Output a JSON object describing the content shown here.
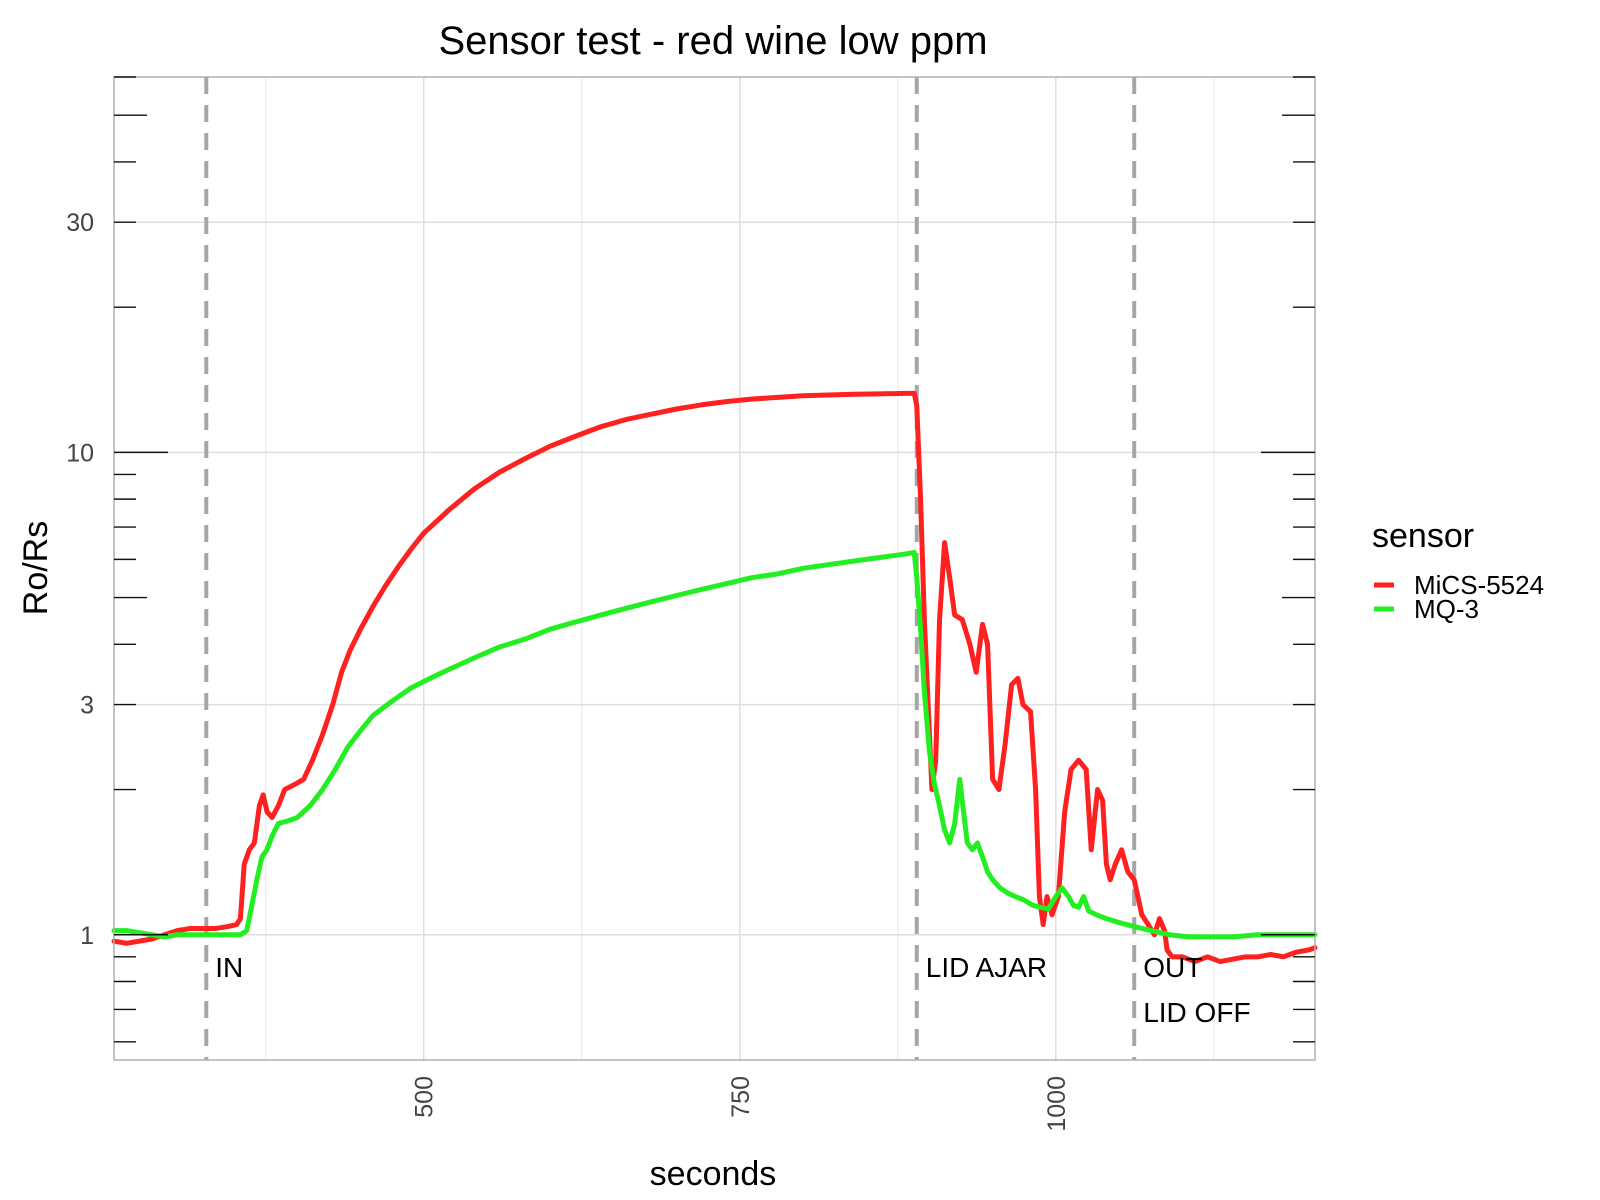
{
  "chart_data": {
    "type": "line",
    "title": "Sensor test - red wine low ppm",
    "xlabel": "seconds",
    "ylabel": "Ro/Rs",
    "xlim": [
      255,
      1205
    ],
    "ylim": [
      0.55,
      60
    ],
    "y_scale": "log",
    "x_ticks": [
      500,
      750,
      1000
    ],
    "x_tick_labels": [
      "500",
      "750",
      "1000"
    ],
    "y_ticks": [
      1,
      3,
      10,
      30
    ],
    "y_tick_labels": [
      "1",
      "3",
      "10",
      "30"
    ],
    "grid": true,
    "legend": {
      "title": "sensor",
      "placement": "right"
    },
    "events": [
      {
        "x": 328,
        "labels": [
          "IN"
        ]
      },
      {
        "x": 890,
        "labels": [
          "LID AJAR"
        ]
      },
      {
        "x": 1062,
        "labels": [
          "OUT",
          "LID OFF"
        ]
      }
    ],
    "series": [
      {
        "name": "MiCS-5524",
        "color": "#ff2020",
        "points": [
          [
            255,
            0.97
          ],
          [
            265,
            0.96
          ],
          [
            275,
            0.97
          ],
          [
            285,
            0.98
          ],
          [
            295,
            1.0
          ],
          [
            305,
            1.02
          ],
          [
            315,
            1.03
          ],
          [
            325,
            1.03
          ],
          [
            335,
            1.03
          ],
          [
            345,
            1.04
          ],
          [
            352,
            1.05
          ],
          [
            355,
            1.08
          ],
          [
            358,
            1.4
          ],
          [
            362,
            1.5
          ],
          [
            366,
            1.55
          ],
          [
            370,
            1.85
          ],
          [
            373,
            1.95
          ],
          [
            376,
            1.8
          ],
          [
            380,
            1.75
          ],
          [
            385,
            1.85
          ],
          [
            390,
            2.0
          ],
          [
            398,
            2.05
          ],
          [
            405,
            2.1
          ],
          [
            412,
            2.3
          ],
          [
            420,
            2.6
          ],
          [
            428,
            3.0
          ],
          [
            435,
            3.5
          ],
          [
            442,
            3.9
          ],
          [
            450,
            4.3
          ],
          [
            460,
            4.8
          ],
          [
            470,
            5.3
          ],
          [
            480,
            5.8
          ],
          [
            490,
            6.3
          ],
          [
            500,
            6.8
          ],
          [
            520,
            7.6
          ],
          [
            540,
            8.4
          ],
          [
            560,
            9.1
          ],
          [
            580,
            9.7
          ],
          [
            600,
            10.3
          ],
          [
            620,
            10.8
          ],
          [
            640,
            11.3
          ],
          [
            660,
            11.7
          ],
          [
            680,
            12.0
          ],
          [
            700,
            12.3
          ],
          [
            720,
            12.55
          ],
          [
            740,
            12.75
          ],
          [
            760,
            12.9
          ],
          [
            780,
            13.0
          ],
          [
            800,
            13.1
          ],
          [
            820,
            13.15
          ],
          [
            840,
            13.2
          ],
          [
            860,
            13.22
          ],
          [
            880,
            13.25
          ],
          [
            888,
            13.25
          ],
          [
            890,
            12.5
          ],
          [
            893,
            8.0
          ],
          [
            896,
            4.5
          ],
          [
            899,
            3.0
          ],
          [
            902,
            2.0
          ],
          [
            905,
            2.3
          ],
          [
            908,
            4.5
          ],
          [
            912,
            6.5
          ],
          [
            916,
            5.5
          ],
          [
            920,
            4.6
          ],
          [
            926,
            4.5
          ],
          [
            932,
            4.0
          ],
          [
            937,
            3.5
          ],
          [
            942,
            4.4
          ],
          [
            946,
            4.0
          ],
          [
            950,
            2.1
          ],
          [
            955,
            2.0
          ],
          [
            960,
            2.5
          ],
          [
            965,
            3.3
          ],
          [
            970,
            3.4
          ],
          [
            974,
            3.0
          ],
          [
            980,
            2.9
          ],
          [
            984,
            2.0
          ],
          [
            987,
            1.2
          ],
          [
            990,
            1.05
          ],
          [
            993,
            1.2
          ],
          [
            997,
            1.1
          ],
          [
            1002,
            1.2
          ],
          [
            1007,
            1.8
          ],
          [
            1012,
            2.2
          ],
          [
            1018,
            2.3
          ],
          [
            1024,
            2.2
          ],
          [
            1028,
            1.5
          ],
          [
            1033,
            2.0
          ],
          [
            1037,
            1.9
          ],
          [
            1040,
            1.4
          ],
          [
            1043,
            1.3
          ],
          [
            1047,
            1.4
          ],
          [
            1052,
            1.5
          ],
          [
            1057,
            1.35
          ],
          [
            1062,
            1.3
          ],
          [
            1068,
            1.1
          ],
          [
            1073,
            1.05
          ],
          [
            1078,
            1.0
          ],
          [
            1082,
            1.08
          ],
          [
            1086,
            1.02
          ],
          [
            1088,
            0.93
          ],
          [
            1092,
            0.9
          ],
          [
            1100,
            0.9
          ],
          [
            1110,
            0.88
          ],
          [
            1120,
            0.9
          ],
          [
            1130,
            0.88
          ],
          [
            1140,
            0.89
          ],
          [
            1150,
            0.9
          ],
          [
            1160,
            0.9
          ],
          [
            1170,
            0.91
          ],
          [
            1180,
            0.9
          ],
          [
            1190,
            0.92
          ],
          [
            1200,
            0.93
          ],
          [
            1205,
            0.94
          ]
        ]
      },
      {
        "name": "MQ-3",
        "color": "#22ee22",
        "points": [
          [
            255,
            1.02
          ],
          [
            265,
            1.02
          ],
          [
            275,
            1.01
          ],
          [
            285,
            1.0
          ],
          [
            295,
            0.99
          ],
          [
            305,
            1.0
          ],
          [
            315,
            1.0
          ],
          [
            325,
            1.0
          ],
          [
            335,
            1.0
          ],
          [
            345,
            1.0
          ],
          [
            355,
            1.0
          ],
          [
            360,
            1.02
          ],
          [
            364,
            1.15
          ],
          [
            368,
            1.3
          ],
          [
            372,
            1.45
          ],
          [
            376,
            1.5
          ],
          [
            380,
            1.6
          ],
          [
            385,
            1.7
          ],
          [
            392,
            1.72
          ],
          [
            400,
            1.75
          ],
          [
            410,
            1.85
          ],
          [
            420,
            2.0
          ],
          [
            430,
            2.2
          ],
          [
            440,
            2.45
          ],
          [
            450,
            2.65
          ],
          [
            460,
            2.85
          ],
          [
            475,
            3.05
          ],
          [
            490,
            3.25
          ],
          [
            505,
            3.4
          ],
          [
            520,
            3.55
          ],
          [
            540,
            3.75
          ],
          [
            560,
            3.95
          ],
          [
            580,
            4.1
          ],
          [
            600,
            4.3
          ],
          [
            620,
            4.45
          ],
          [
            640,
            4.6
          ],
          [
            660,
            4.75
          ],
          [
            680,
            4.9
          ],
          [
            700,
            5.05
          ],
          [
            720,
            5.2
          ],
          [
            740,
            5.35
          ],
          [
            760,
            5.5
          ],
          [
            780,
            5.6
          ],
          [
            800,
            5.75
          ],
          [
            820,
            5.85
          ],
          [
            840,
            5.95
          ],
          [
            860,
            6.05
          ],
          [
            880,
            6.15
          ],
          [
            888,
            6.2
          ],
          [
            890,
            5.5
          ],
          [
            893,
            4.3
          ],
          [
            896,
            3.2
          ],
          [
            900,
            2.4
          ],
          [
            904,
            2.05
          ],
          [
            908,
            1.85
          ],
          [
            912,
            1.65
          ],
          [
            916,
            1.55
          ],
          [
            920,
            1.7
          ],
          [
            924,
            2.1
          ],
          [
            927,
            1.8
          ],
          [
            930,
            1.55
          ],
          [
            934,
            1.5
          ],
          [
            938,
            1.55
          ],
          [
            942,
            1.45
          ],
          [
            946,
            1.35
          ],
          [
            950,
            1.3
          ],
          [
            956,
            1.25
          ],
          [
            962,
            1.22
          ],
          [
            968,
            1.2
          ],
          [
            975,
            1.18
          ],
          [
            982,
            1.15
          ],
          [
            988,
            1.14
          ],
          [
            994,
            1.13
          ],
          [
            1000,
            1.2
          ],
          [
            1005,
            1.25
          ],
          [
            1010,
            1.2
          ],
          [
            1014,
            1.15
          ],
          [
            1018,
            1.14
          ],
          [
            1022,
            1.2
          ],
          [
            1026,
            1.12
          ],
          [
            1032,
            1.1
          ],
          [
            1040,
            1.08
          ],
          [
            1050,
            1.06
          ],
          [
            1062,
            1.04
          ],
          [
            1075,
            1.02
          ],
          [
            1090,
            1.0
          ],
          [
            1105,
            0.99
          ],
          [
            1120,
            0.99
          ],
          [
            1140,
            0.99
          ],
          [
            1160,
            1.0
          ],
          [
            1180,
            1.0
          ],
          [
            1195,
            1.0
          ],
          [
            1205,
            1.0
          ]
        ]
      }
    ]
  }
}
